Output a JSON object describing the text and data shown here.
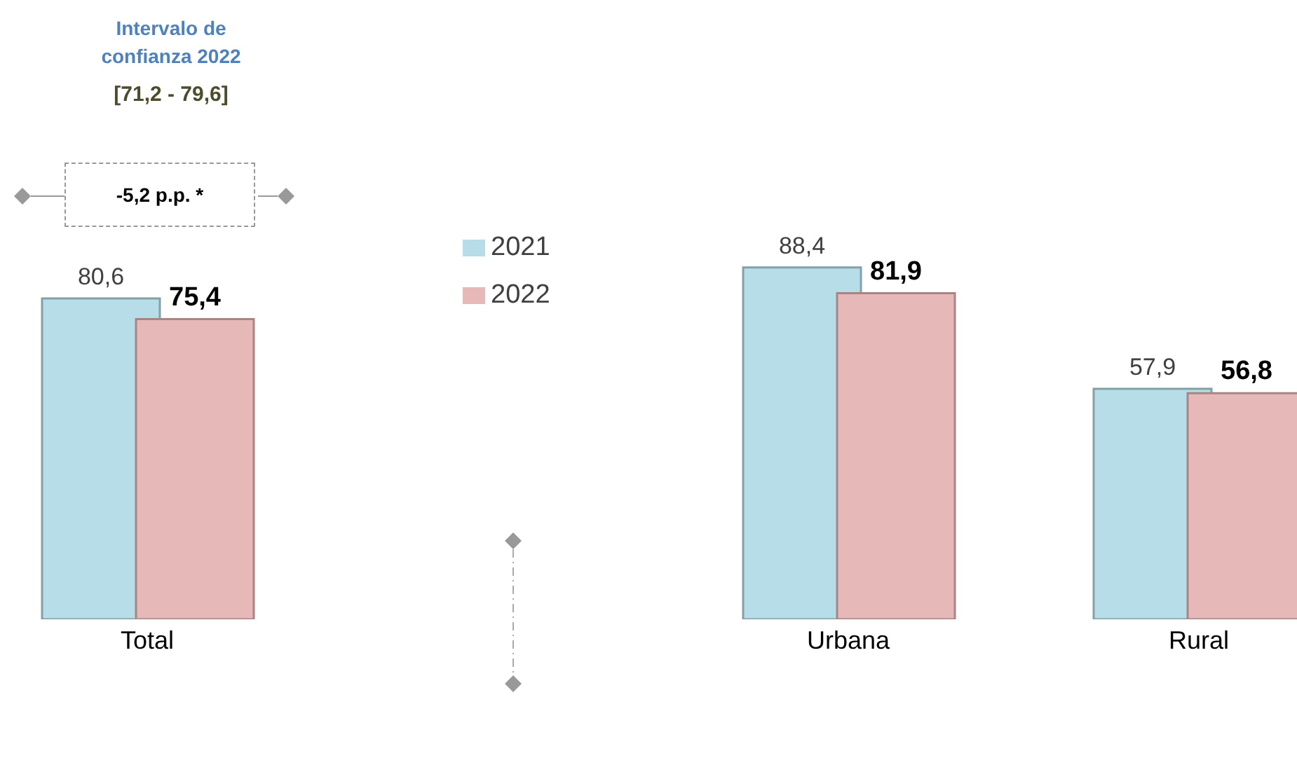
{
  "chart_data": {
    "type": "bar",
    "categories": [
      "Total",
      null,
      "Urbana",
      "Rural"
    ],
    "series": [
      {
        "name": "2021",
        "color": "#b7dee8",
        "values": [
          80.6,
          null,
          88.4,
          57.9
        ],
        "value_labels": [
          "80,6",
          null,
          "88,4",
          "57,9"
        ]
      },
      {
        "name": "2022",
        "color": "#e6b9b8",
        "values": [
          75.4,
          null,
          81.9,
          56.8
        ],
        "value_labels": [
          "75,4",
          null,
          "81,9",
          "56,8"
        ]
      }
    ],
    "legend": "top",
    "grid": false,
    "annotations": [
      "Intervalo de confianza 2022",
      "[71,2 - 79,6]",
      "-5,2 p.p. *"
    ]
  }
}
